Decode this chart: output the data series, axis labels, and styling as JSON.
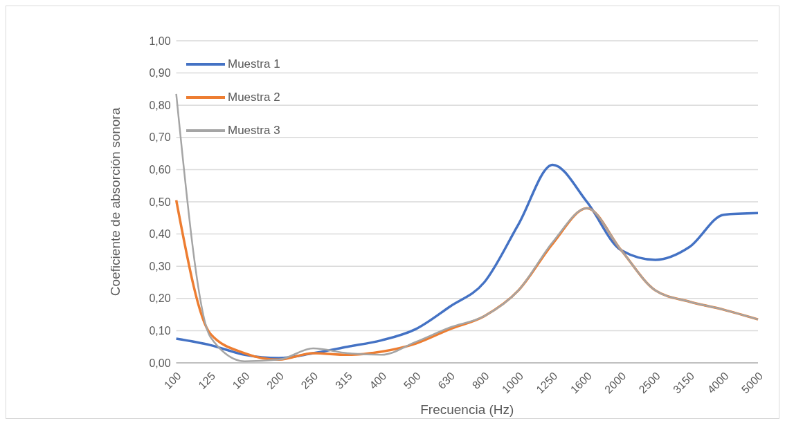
{
  "chart_data": {
    "type": "line",
    "xlabel": "Frecuencia (Hz)",
    "ylabel": "Coeficiente de absorción sonora",
    "categories": [
      "100",
      "125",
      "160",
      "200",
      "250",
      "315",
      "400",
      "500",
      "630",
      "800",
      "1000",
      "1250",
      "1600",
      "2000",
      "2500",
      "3150",
      "4000",
      "5000"
    ],
    "series": [
      {
        "name": "Muestra 1",
        "color": "#4472c4",
        "values": [
          0.075,
          0.055,
          0.025,
          0.015,
          0.03,
          0.05,
          0.07,
          0.105,
          0.175,
          0.25,
          0.43,
          0.615,
          0.5,
          0.35,
          0.32,
          0.36,
          0.46,
          0.465
        ]
      },
      {
        "name": "Muestra 2",
        "color": "#ed7d31",
        "values": [
          0.505,
          0.09,
          0.03,
          0.01,
          0.03,
          0.025,
          0.035,
          0.06,
          0.105,
          0.145,
          0.225,
          0.37,
          0.48,
          0.35,
          0.225,
          0.19,
          0.165,
          0.135
        ]
      },
      {
        "name": "Muestra 3",
        "color": "#a5a5a5",
        "values": [
          0.835,
          0.08,
          0.005,
          0.01,
          0.045,
          0.03,
          0.025,
          0.065,
          0.11,
          0.145,
          0.225,
          0.375,
          0.48,
          0.35,
          0.225,
          0.19,
          0.165,
          0.135
        ]
      }
    ],
    "ylim": [
      0,
      1
    ],
    "yticks": [
      {
        "value": 0,
        "label": "0,00"
      },
      {
        "value": 0.1,
        "label": "0,10"
      },
      {
        "value": 0.2,
        "label": "0,20"
      },
      {
        "value": 0.3,
        "label": "0,30"
      },
      {
        "value": 0.4,
        "label": "0,40"
      },
      {
        "value": 0.5,
        "label": "0,50"
      },
      {
        "value": 0.6,
        "label": "0,60"
      },
      {
        "value": 0.7,
        "label": "0,70"
      },
      {
        "value": 0.8,
        "label": "0,80"
      },
      {
        "value": 0.9,
        "label": "0,90"
      },
      {
        "value": 1,
        "label": "1,00"
      }
    ],
    "grid": "y",
    "legend": "top left",
    "marker": "none",
    "line_style": "solid"
  }
}
